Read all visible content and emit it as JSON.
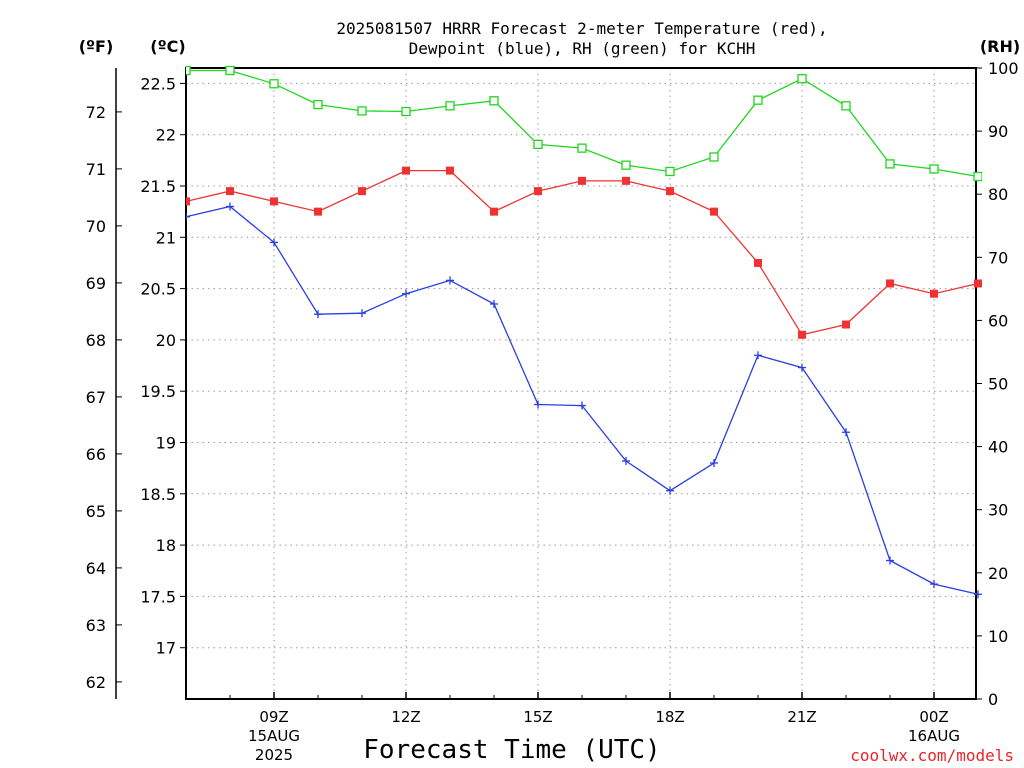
{
  "title_line1": "2025081507 HRRR Forecast 2-meter Temperature (red),",
  "title_line2": "Dewpoint (blue), RH (green) for KCHH",
  "unit_f": "(ºF)",
  "unit_c": "(ºC)",
  "unit_rh": "(RH)",
  "xlabel": "Forecast Time (UTC)",
  "credit": "coolwx.com/models",
  "chart_data": {
    "type": "line",
    "x": [
      "07Z",
      "08Z",
      "09Z",
      "10Z",
      "11Z",
      "12Z",
      "13Z",
      "14Z",
      "15Z",
      "16Z",
      "17Z",
      "18Z",
      "19Z",
      "20Z",
      "21Z",
      "22Z",
      "23Z",
      "00Z",
      "01Z"
    ],
    "x_ticks": [
      {
        "label": "09Z",
        "sub1": "15AUG",
        "sub2": "2025"
      },
      {
        "label": "12Z",
        "sub1": "",
        "sub2": ""
      },
      {
        "label": "15Z",
        "sub1": "",
        "sub2": ""
      },
      {
        "label": "18Z",
        "sub1": "",
        "sub2": ""
      },
      {
        "label": "21Z",
        "sub1": "",
        "sub2": ""
      },
      {
        "label": "00Z",
        "sub1": "16AUG",
        "sub2": ""
      }
    ],
    "series": [
      {
        "color": "#f03232",
        "marker": "filled-square",
        "axis": "C",
        "values": [
          21.35,
          21.45,
          21.35,
          21.25,
          21.45,
          21.65,
          21.65,
          21.25,
          21.45,
          21.55,
          21.55,
          21.45,
          21.25,
          20.75,
          20.05,
          20.15,
          20.55,
          20.45,
          20.55
        ]
      },
      {
        "color": "#2a3fe0",
        "marker": "plus",
        "axis": "C",
        "values": [
          21.2,
          21.3,
          20.95,
          20.25,
          20.26,
          20.45,
          20.58,
          20.35,
          19.37,
          19.36,
          18.82,
          18.53,
          18.8,
          19.85,
          19.73,
          19.1,
          17.85,
          17.62,
          17.52
        ]
      },
      {
        "color": "#1fd61f",
        "marker": "open-square",
        "axis": "RH",
        "values": [
          99.6,
          99.6,
          97.5,
          94.2,
          93.2,
          93.1,
          94,
          94.8,
          87.9,
          87.3,
          84.6,
          83.6,
          85.9,
          94.9,
          98.3,
          94,
          84.8,
          84,
          82.8
        ]
      }
    ],
    "y_left_f": {
      "ticks": [
        62,
        63,
        64,
        65,
        66,
        67,
        68,
        69,
        70,
        71,
        72
      ]
    },
    "y_left_c": {
      "ticks": [
        17,
        17.5,
        18,
        18.5,
        19,
        19.5,
        20,
        20.5,
        21,
        21.5,
        22,
        22.5
      ]
    },
    "y_right_rh": {
      "ticks": [
        0,
        10,
        20,
        30,
        40,
        50,
        60,
        70,
        80,
        90,
        100
      ]
    },
    "xlim": [
      "06Z",
      "01Z"
    ],
    "ylim_c": [
      16.5,
      22.65
    ],
    "ylim_rh": [
      0,
      100
    ],
    "grid": true
  }
}
